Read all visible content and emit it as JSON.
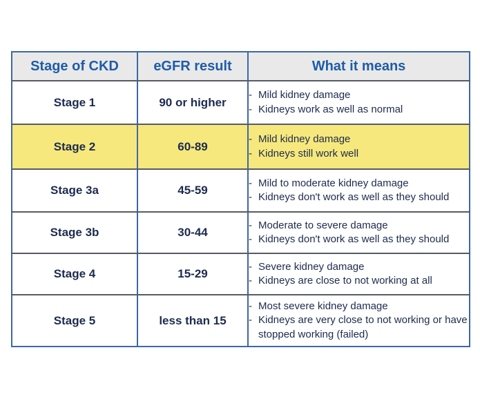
{
  "colors": {
    "border_blue": "#3c66a8",
    "border_gray": "#565b63",
    "header_bg": "#e9e9e9",
    "header_text": "#1d5ca9",
    "body_text": "#1d2b4f",
    "highlight_yellow": "#f6e87c",
    "page_bg": "#ffffff"
  },
  "table": {
    "headers": [
      "Stage of CKD",
      "eGFR result",
      "What it means"
    ],
    "rows": [
      {
        "stage": "Stage 1",
        "egfr": "90 or higher",
        "highlighted": false,
        "bullets": [
          "Mild kidney damage",
          "Kidneys work as well as normal"
        ]
      },
      {
        "stage": "Stage 2",
        "egfr": "60-89",
        "highlighted": true,
        "bullets": [
          "Mild kidney damage",
          "Kidneys still work well"
        ]
      },
      {
        "stage": "Stage 3a",
        "egfr": "45-59",
        "highlighted": false,
        "bullets": [
          "Mild to moderate kidney damage",
          "Kidneys don't work as well as they should"
        ]
      },
      {
        "stage": "Stage 3b",
        "egfr": "30-44",
        "highlighted": false,
        "bullets": [
          "Moderate to severe damage",
          "Kidneys don't work as well as they should"
        ]
      },
      {
        "stage": "Stage 4",
        "egfr": "15-29",
        "highlighted": false,
        "bullets": [
          "Severe kidney damage",
          "Kidneys are close to not working at all"
        ]
      },
      {
        "stage": "Stage 5",
        "egfr": "less than 15",
        "highlighted": false,
        "bullets": [
          "Most severe kidney damage",
          "Kidneys are very close to not working or have stopped working (failed)"
        ]
      }
    ],
    "bullet_marker": "-"
  }
}
